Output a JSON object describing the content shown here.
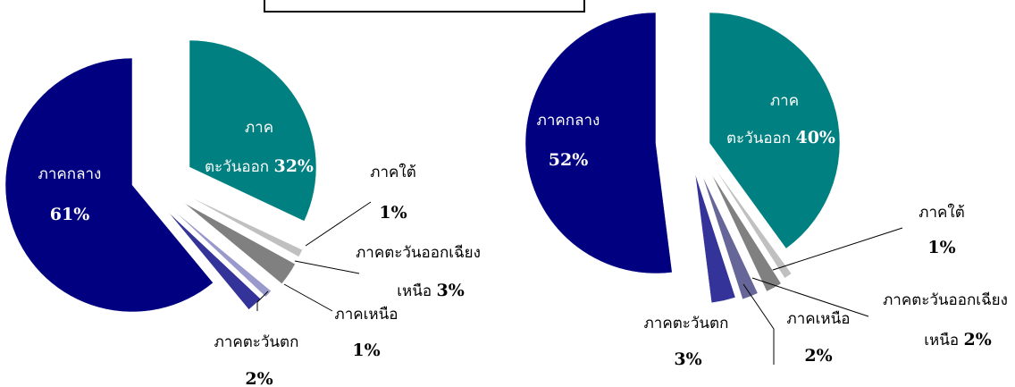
{
  "chart_data": [
    {
      "type": "pie",
      "title": "",
      "colors": [
        "#008080",
        "#C0C0C0",
        "#808080",
        "#9999CC",
        "#333399",
        "#000080"
      ],
      "slices": [
        {
          "name": "ภาคตะวันออก",
          "value": 32,
          "label_line1": "ภาค",
          "label_line2": "ตะวันออก",
          "pct": "32%"
        },
        {
          "name": "ภาคใต้",
          "value": 1,
          "label_line1": "ภาคใต้",
          "pct": "1%"
        },
        {
          "name": "ภาคตะวันออกเฉียงเหนือ",
          "value": 3,
          "label_line1": "ภาคตะวันออกเฉียง",
          "label_line2": "เหนือ",
          "pct": "3%"
        },
        {
          "name": "ภาคเหนือ",
          "value": 1,
          "label_line1": "ภาคเหนือ",
          "pct": "1%"
        },
        {
          "name": "ภาคตะวันตก",
          "value": 2,
          "label_line1": "ภาคตะวันตก",
          "pct": "2%"
        },
        {
          "name": "ภาคกลาง",
          "value": 61,
          "label_line1": "ภาคกลาง",
          "pct": "61%"
        }
      ]
    },
    {
      "type": "pie",
      "title": "",
      "colors": [
        "#008080",
        "#C0C0C0",
        "#808080",
        "#666699",
        "#333399",
        "#000080"
      ],
      "slices": [
        {
          "name": "ภาคตะวันออก",
          "value": 40,
          "label_line1": "ภาค",
          "label_line2": "ตะวันออก",
          "pct": "40%"
        },
        {
          "name": "ภาคใต้",
          "value": 1,
          "label_line1": "ภาคใต้",
          "pct": "1%"
        },
        {
          "name": "ภาคตะวันออกเฉียงเหนือ",
          "value": 2,
          "label_line1": "ภาคตะวันออกเฉียง",
          "label_line2": "เหนือ",
          "pct": "2%"
        },
        {
          "name": "ภาคเหนือ",
          "value": 2,
          "label_line1": "ภาคเหนือ",
          "pct": "2%"
        },
        {
          "name": "ภาคตะวันตก",
          "value": 3,
          "label_line1": "ภาคตะวันตก",
          "pct": "3%"
        },
        {
          "name": "ภาคกลาง",
          "value": 52,
          "label_line1": "ภาคกลาง",
          "pct": "52%"
        }
      ]
    }
  ]
}
